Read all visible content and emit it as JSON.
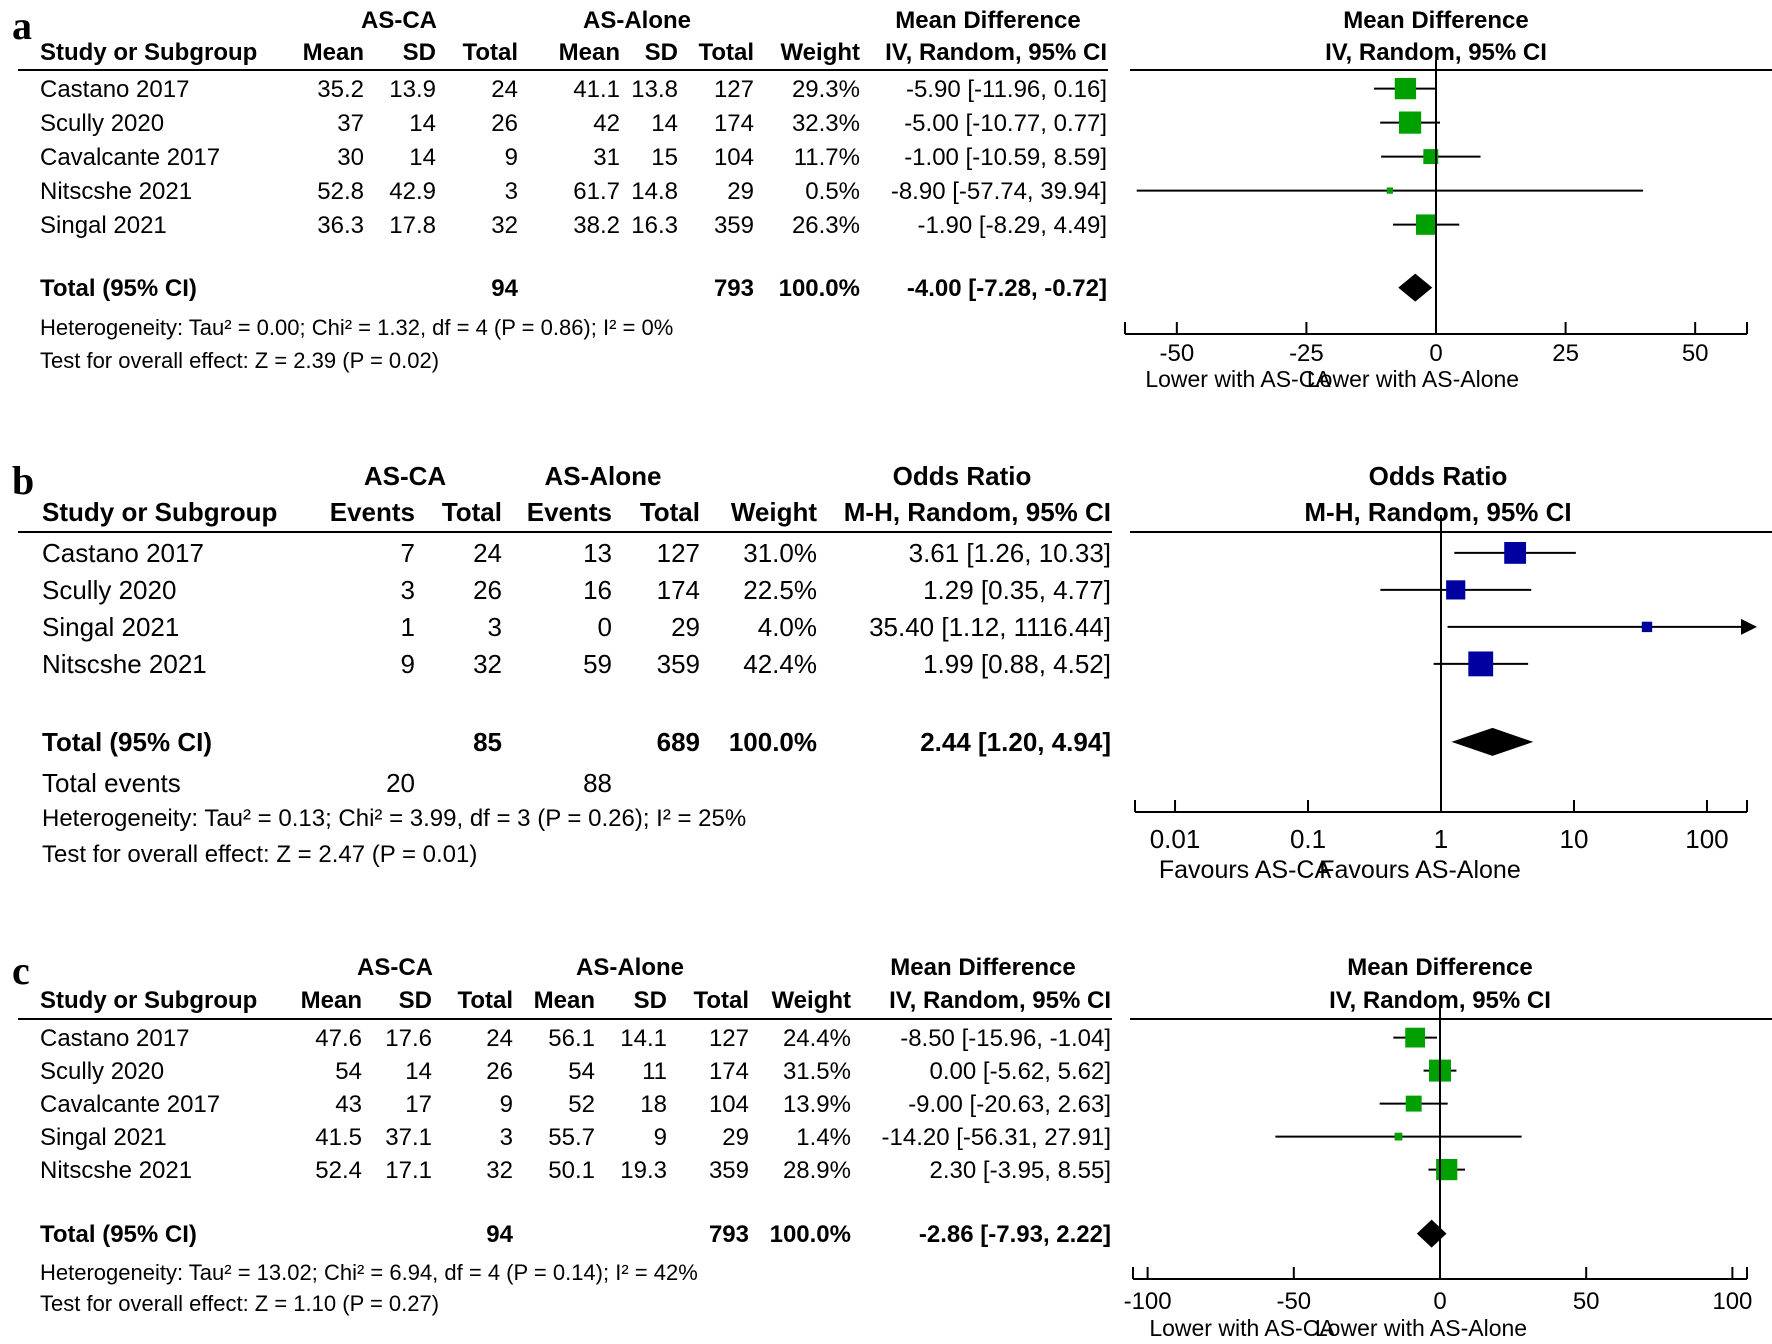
{
  "chart_data": [
    {
      "type": "table",
      "panel_label": "a",
      "groups": [
        "AS-CA",
        "AS-Alone"
      ],
      "effect_title": "Mean Difference",
      "effect_method": "IV, Random, 95% CI",
      "header": {
        "study": "Study or Subgroup",
        "cols": [
          "Mean",
          "SD",
          "Total",
          "Mean",
          "SD",
          "Total",
          "Weight"
        ]
      },
      "studies": [
        {
          "name": "Castano 2017",
          "cells": [
            "35.2",
            "13.9",
            "24",
            "41.1",
            "13.8",
            "127",
            "29.3%"
          ],
          "ci_text": "-5.90 [-11.96, 0.16]",
          "est": -5.9,
          "lo": -11.96,
          "hi": 0.16,
          "weight": 29.3
        },
        {
          "name": "Scully 2020",
          "cells": [
            "37",
            "14",
            "26",
            "42",
            "14",
            "174",
            "32.3%"
          ],
          "ci_text": "-5.00 [-10.77, 0.77]",
          "est": -5.0,
          "lo": -10.77,
          "hi": 0.77,
          "weight": 32.3
        },
        {
          "name": "Cavalcante 2017",
          "cells": [
            "30",
            "14",
            "9",
            "31",
            "15",
            "104",
            "11.7%"
          ],
          "ci_text": "-1.00 [-10.59, 8.59]",
          "est": -1.0,
          "lo": -10.59,
          "hi": 8.59,
          "weight": 11.7
        },
        {
          "name": "Nitscshe 2021",
          "cells": [
            "52.8",
            "42.9",
            "3",
            "61.7",
            "14.8",
            "29",
            "0.5%"
          ],
          "ci_text": "-8.90 [-57.74, 39.94]",
          "est": -8.9,
          "lo": -57.74,
          "hi": 39.94,
          "weight": 0.5
        },
        {
          "name": "Singal 2021",
          "cells": [
            "36.3",
            "17.8",
            "32",
            "38.2",
            "16.3",
            "359",
            "26.3%"
          ],
          "ci_text": "-1.90 [-8.29, 4.49]",
          "est": -1.9,
          "lo": -8.29,
          "hi": 4.49,
          "weight": 26.3
        }
      ],
      "total": {
        "label": "Total (95% CI)",
        "cells": [
          "",
          "",
          "94",
          "",
          "",
          "793",
          "100.0%"
        ],
        "ci_text": "-4.00 [-7.28, -0.72]",
        "est": -4.0,
        "lo": -7.28,
        "hi": -0.72
      },
      "total_events": null,
      "heterogeneity": "Heterogeneity: Tau² = 0.00; Chi² = 1.32, df = 4 (P = 0.86); I² = 0%",
      "overall_effect": "Test for overall effect: Z = 2.39 (P = 0.02)",
      "axis": {
        "scale": "linear",
        "min": -60,
        "max": 60,
        "ticks": [
          -50,
          -25,
          0,
          25,
          50
        ],
        "tick_labels": [
          "-50",
          "-25",
          "0",
          "25",
          "50"
        ]
      },
      "favours": [
        "Lower with AS-CA",
        "Lower with AS-Alone"
      ],
      "marker_color": "#00a000"
    },
    {
      "type": "table",
      "panel_label": "b",
      "groups": [
        "AS-CA",
        "AS-Alone"
      ],
      "effect_title": "Odds Ratio",
      "effect_method": "M-H, Random, 95% CI",
      "header": {
        "study": "Study or Subgroup",
        "cols": [
          "Events",
          "Total",
          "Events",
          "Total",
          "Weight"
        ]
      },
      "studies": [
        {
          "name": "Castano 2017",
          "cells": [
            "7",
            "24",
            "13",
            "127",
            "31.0%"
          ],
          "ci_text": "3.61 [1.26, 10.33]",
          "est": 3.61,
          "lo": 1.26,
          "hi": 10.33,
          "weight": 31.0
        },
        {
          "name": "Scully 2020",
          "cells": [
            "3",
            "26",
            "16",
            "174",
            "22.5%"
          ],
          "ci_text": "1.29 [0.35, 4.77]",
          "est": 1.29,
          "lo": 0.35,
          "hi": 4.77,
          "weight": 22.5
        },
        {
          "name": "Singal 2021",
          "cells": [
            "1",
            "3",
            "0",
            "29",
            "4.0%"
          ],
          "ci_text": "35.40 [1.12, 1116.44]",
          "est": 35.4,
          "lo": 1.12,
          "hi": 1116.44,
          "weight": 4.0
        },
        {
          "name": "Nitscshe 2021",
          "cells": [
            "9",
            "32",
            "59",
            "359",
            "42.4%"
          ],
          "ci_text": "1.99 [0.88, 4.52]",
          "est": 1.99,
          "lo": 0.88,
          "hi": 4.52,
          "weight": 42.4
        }
      ],
      "total": {
        "label": "Total (95% CI)",
        "cells": [
          "",
          "85",
          "",
          "689",
          "100.0%"
        ],
        "ci_text": "2.44 [1.20, 4.94]",
        "est": 2.44,
        "lo": 1.2,
        "hi": 4.94
      },
      "total_events": {
        "label": "Total events",
        "values": [
          "20",
          "88"
        ]
      },
      "heterogeneity": "Heterogeneity: Tau² = 0.13; Chi² = 3.99, df = 3 (P = 0.26); I² = 25%",
      "overall_effect": "Test for overall effect: Z = 2.47 (P = 0.01)",
      "axis": {
        "scale": "log",
        "min": 0.005,
        "max": 200,
        "ticks": [
          0.01,
          0.1,
          1,
          10,
          100
        ],
        "tick_labels": [
          "0.01",
          "0.1",
          "1",
          "10",
          "100"
        ]
      },
      "favours": [
        "Favours AS-CA",
        "Favours AS-Alone"
      ],
      "marker_color": "#0000a0"
    },
    {
      "type": "table",
      "panel_label": "c",
      "groups": [
        "AS-CA",
        "AS-Alone"
      ],
      "effect_title": "Mean Difference",
      "effect_method": "IV, Random, 95% CI",
      "header": {
        "study": "Study or Subgroup",
        "cols": [
          "Mean",
          "SD",
          "Total",
          "Mean",
          "SD",
          "Total",
          "Weight"
        ]
      },
      "studies": [
        {
          "name": "Castano 2017",
          "cells": [
            "47.6",
            "17.6",
            "24",
            "56.1",
            "14.1",
            "127",
            "24.4%"
          ],
          "ci_text": "-8.50 [-15.96, -1.04]",
          "est": -8.5,
          "lo": -15.96,
          "hi": -1.04,
          "weight": 24.4
        },
        {
          "name": "Scully 2020",
          "cells": [
            "54",
            "14",
            "26",
            "54",
            "11",
            "174",
            "31.5%"
          ],
          "ci_text": "0.00 [-5.62, 5.62]",
          "est": 0.0,
          "lo": -5.62,
          "hi": 5.62,
          "weight": 31.5
        },
        {
          "name": "Cavalcante 2017",
          "cells": [
            "43",
            "17",
            "9",
            "52",
            "18",
            "104",
            "13.9%"
          ],
          "ci_text": "-9.00 [-20.63, 2.63]",
          "est": -9.0,
          "lo": -20.63,
          "hi": 2.63,
          "weight": 13.9
        },
        {
          "name": "Singal 2021",
          "cells": [
            "41.5",
            "37.1",
            "3",
            "55.7",
            "9",
            "29",
            "1.4%"
          ],
          "ci_text": "-14.20 [-56.31, 27.91]",
          "est": -14.2,
          "lo": -56.31,
          "hi": 27.91,
          "weight": 1.4
        },
        {
          "name": "Nitscshe 2021",
          "cells": [
            "52.4",
            "17.1",
            "32",
            "50.1",
            "19.3",
            "359",
            "28.9%"
          ],
          "ci_text": "2.30 [-3.95, 8.55]",
          "est": 2.3,
          "lo": -3.95,
          "hi": 8.55,
          "weight": 28.9
        }
      ],
      "total": {
        "label": "Total (95% CI)",
        "cells": [
          "",
          "",
          "94",
          "",
          "",
          "793",
          "100.0%"
        ],
        "ci_text": "-2.86 [-7.93, 2.22]",
        "est": -2.86,
        "lo": -7.93,
        "hi": 2.22
      },
      "total_events": null,
      "heterogeneity": "Heterogeneity: Tau² = 13.02; Chi² = 6.94, df = 4 (P = 0.14); I² = 42%",
      "overall_effect": "Test for overall effect: Z = 1.10 (P = 0.27)",
      "axis": {
        "scale": "linear",
        "min": -105,
        "max": 105,
        "ticks": [
          -100,
          -50,
          0,
          50,
          100
        ],
        "tick_labels": [
          "-100",
          "-50",
          "0",
          "50",
          "100"
        ]
      },
      "favours": [
        "Lower with AS-CA",
        "Lower with AS-Alone"
      ],
      "marker_color": "#00a000"
    }
  ]
}
